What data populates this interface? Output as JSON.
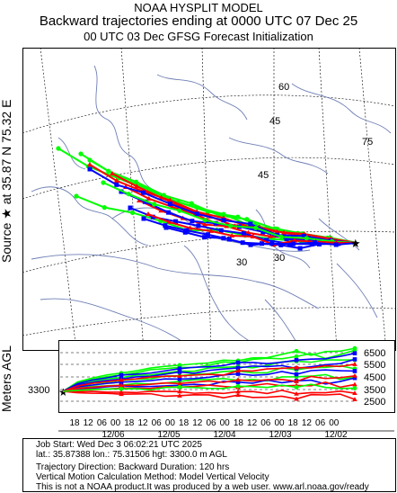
{
  "header": {
    "model": "NOAA HYSPLIT MODEL",
    "title": "Backward trajectories ending at 0000 UTC 07 Dec 25",
    "subtitle": "00 UTC 03 Dec     GFSG  Forecast Initialization"
  },
  "side_label": "Source ★ at  35.87 N   75.32 E",
  "map": {
    "lat_labels": [
      "60",
      "45",
      "30",
      "75",
      "45",
      "30"
    ],
    "lon_labels": [
      "60",
      "75"
    ]
  },
  "profile": {
    "ylabel": "Meters AGL",
    "start_height": "3300",
    "levels": [
      "6500",
      "5500",
      "4500",
      "3500",
      "2500"
    ],
    "hour_ticks": [
      "18",
      "12",
      "06",
      "00",
      "18",
      "12",
      "06",
      "00",
      "18",
      "12",
      "06",
      "00",
      "18",
      "12",
      "06",
      "00",
      "18",
      "12",
      "06",
      "00"
    ],
    "date_labels": [
      "12/06",
      "12/05",
      "12/04",
      "12/03",
      "12/02"
    ]
  },
  "footer": {
    "line1": "Job Start: Wed Dec  3 06:02:21 UTC 2025",
    "line2": "lat.: 35.87388   lon.: 75.31506   hgt: 3300.0 m AGL",
    "line3": "Trajectory Direction: Backward        Duration: 120 hrs",
    "line4": "Vertical Motion Calculation Method: Model Vertical Velocity",
    "line5": "This is not a NOAA product.It was produced by a web user. www.arl.noaa.gov/ready"
  },
  "colors": {
    "red": "#ff0000",
    "blue": "#0000ff",
    "green": "#00ff00",
    "map_line": "#6f7fb5"
  }
}
